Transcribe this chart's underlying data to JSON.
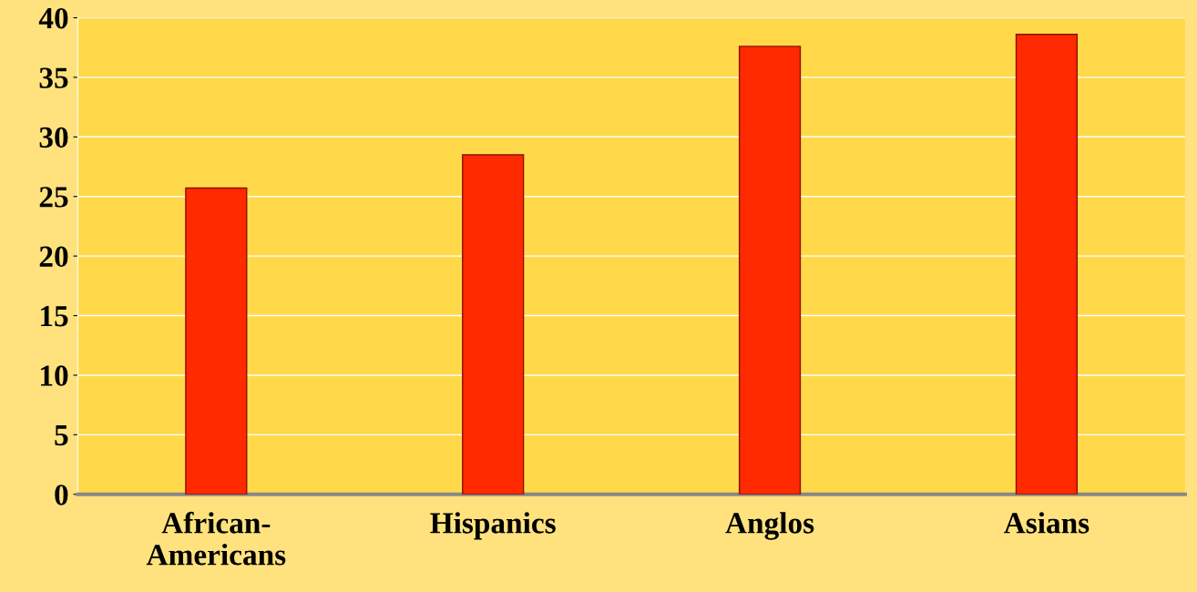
{
  "chart_data": {
    "type": "bar",
    "categories": [
      "African-Americans",
      "Hispanics",
      "Anglos",
      "Asians"
    ],
    "values": [
      25.7,
      28.5,
      37.6,
      38.6
    ],
    "color": "#ff2a00",
    "ylim": [
      0,
      40
    ],
    "yticks": [
      0,
      5,
      10,
      15,
      20,
      25,
      30,
      35,
      40
    ],
    "grid": "y"
  }
}
